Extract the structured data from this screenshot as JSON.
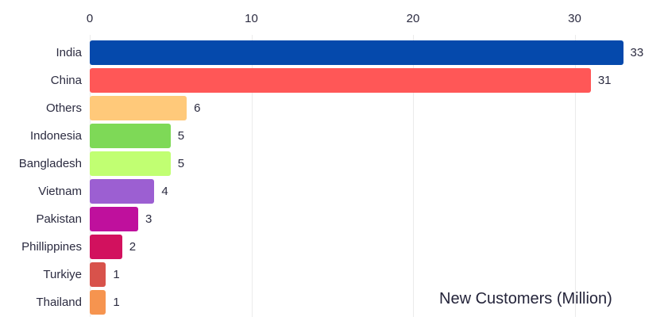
{
  "chart_data": {
    "type": "bar",
    "orientation": "horizontal",
    "title": "New Customers (Million)",
    "categories": [
      "India",
      "China",
      "Others",
      "Indonesia",
      "Bangladesh",
      "Vietnam",
      "Pakistan",
      "Phillippines",
      "Turkiye",
      "Thailand"
    ],
    "values": [
      33,
      31,
      6,
      5,
      5,
      4,
      3,
      2,
      1,
      1
    ],
    "bar_colors": [
      "#0549ac",
      "#ff5757",
      "#ffc97a",
      "#7ed957",
      "#c1ff72",
      "#9c5fd2",
      "#bf109d",
      "#d2115e",
      "#d8524b",
      "#f6944f"
    ],
    "x_tick_labels": [
      "0",
      "10",
      "20",
      "30"
    ],
    "x_tick_values": [
      0,
      10,
      20,
      30
    ],
    "xlim": [
      0,
      35.5
    ],
    "grid": true,
    "legend": false,
    "value_labels_shown": true,
    "title_position": "bottom-right",
    "axis_position": "top"
  },
  "colors": {
    "text": "#2b2b40",
    "gridline": "#ebebeb",
    "background": "#ffffff"
  }
}
